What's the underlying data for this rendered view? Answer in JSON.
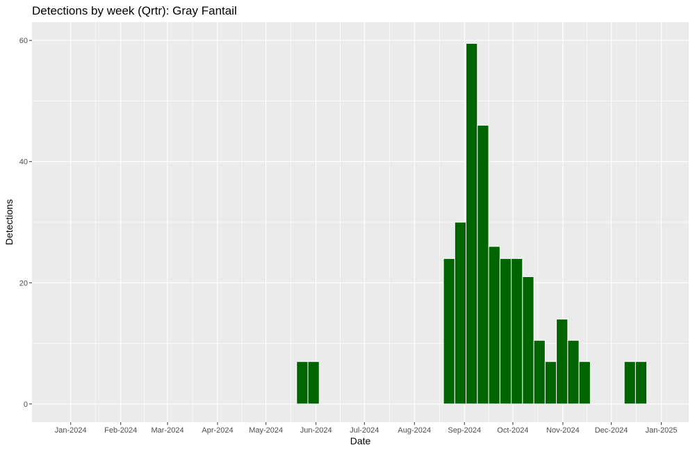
{
  "chart_data": {
    "type": "bar",
    "title": "Detections by week (Qrtr): Gray Fantail",
    "xlabel": "Date",
    "ylabel": "Detections",
    "x_tick_labels": [
      "Jan-2024",
      "Feb-2024",
      "Mar-2024",
      "Apr-2024",
      "May-2024",
      "Jun-2024",
      "Jul-2024",
      "Aug-2024",
      "Sep-2024",
      "Oct-2024",
      "Nov-2024",
      "Dec-2024",
      "Jan-2025"
    ],
    "y_ticks": [
      0,
      20,
      40,
      60
    ],
    "xlim": [
      "2023-12-08",
      "2025-01-18"
    ],
    "ylim": [
      -3,
      63
    ],
    "grid": true,
    "bar_color": "#006400",
    "bars": [
      {
        "week_start": "2024-05-20",
        "value": 7
      },
      {
        "week_start": "2024-05-27",
        "value": 7
      },
      {
        "week_start": "2024-08-19",
        "value": 24
      },
      {
        "week_start": "2024-08-26",
        "value": 30
      },
      {
        "week_start": "2024-09-02",
        "value": 59.5
      },
      {
        "week_start": "2024-09-09",
        "value": 46
      },
      {
        "week_start": "2024-09-16",
        "value": 26
      },
      {
        "week_start": "2024-09-23",
        "value": 24
      },
      {
        "week_start": "2024-09-30",
        "value": 24
      },
      {
        "week_start": "2024-10-07",
        "value": 21
      },
      {
        "week_start": "2024-10-14",
        "value": 10.5
      },
      {
        "week_start": "2024-10-21",
        "value": 7
      },
      {
        "week_start": "2024-10-28",
        "value": 14
      },
      {
        "week_start": "2024-11-04",
        "value": 10.5
      },
      {
        "week_start": "2024-11-11",
        "value": 7
      },
      {
        "week_start": "2024-12-09",
        "value": 7
      },
      {
        "week_start": "2024-12-16",
        "value": 7
      }
    ]
  }
}
